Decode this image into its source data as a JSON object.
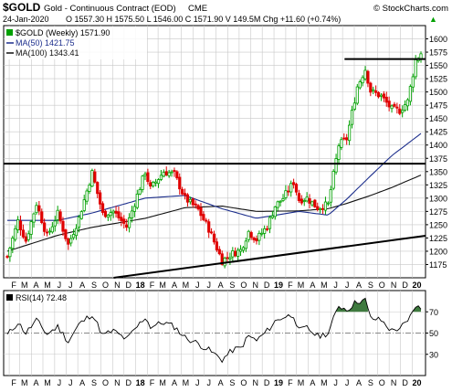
{
  "header": {
    "symbol": "$GOLD",
    "name": "Gold - Continuous Contract (EOD)",
    "exchange": "CME",
    "source": "© StockCharts.com",
    "date": "24-Jan-2020",
    "quote": {
      "O": "1557.30",
      "H": "1575.50",
      "L": "1546.00",
      "C": "1571.90",
      "V": "149.5M",
      "Chg": "+11.60 (+0.74%)"
    },
    "quote_line": "O 1557.30  H 1575.50  L 1546.00  C 1571.90  V 149.5M  Chg +11.60 (+0.74%)",
    "chg_symbol": "▲"
  },
  "legend": {
    "price": "$GOLD (Weekly) 1571.90",
    "ma50": "MA(50) 1421.75",
    "ma100": "MA(100) 1343.41",
    "rsi": "RSI(14) 72.48"
  },
  "colors": {
    "up": "#00a000",
    "down": "#e00000",
    "ma50": "#1c2e8c",
    "ma100": "#111111",
    "rsi_line": "#000000",
    "rsi_fill": "#3f7a3f",
    "grid": "#c8c8c8",
    "frame": "#000000"
  },
  "chart_data": [
    {
      "type": "candlestick",
      "title": "$GOLD (Weekly) 1571.90",
      "timeframe": "weekly",
      "x_range": [
        "2017-01-27",
        "2020-01-24"
      ],
      "ylim": [
        1150,
        1625
      ],
      "y_ticks": [
        1175,
        1200,
        1225,
        1250,
        1275,
        1300,
        1325,
        1350,
        1375,
        1400,
        1425,
        1450,
        1475,
        1500,
        1525,
        1550,
        1575,
        1600
      ],
      "x_tick_labels": [
        "F",
        "M",
        "A",
        "M",
        "J",
        "J",
        "A",
        "S",
        "O",
        "N",
        "D",
        "18",
        "F",
        "M",
        "A",
        "M",
        "J",
        "J",
        "A",
        "S",
        "O",
        "N",
        "D",
        "19",
        "F",
        "M",
        "A",
        "M",
        "J",
        "J",
        "A",
        "S",
        "O",
        "N",
        "D",
        "20"
      ],
      "grid": true,
      "last_close": 1571.9,
      "price_path": [
        [
          "2017-01-27",
          1190
        ],
        [
          "2017-02-24",
          1257
        ],
        [
          "2017-03-17",
          1220
        ],
        [
          "2017-04-14",
          1290
        ],
        [
          "2017-05-12",
          1228
        ],
        [
          "2017-06-09",
          1271
        ],
        [
          "2017-07-07",
          1212
        ],
        [
          "2017-08-04",
          1262
        ],
        [
          "2017-09-08",
          1348
        ],
        [
          "2017-10-06",
          1270
        ],
        [
          "2017-11-03",
          1275
        ],
        [
          "2017-12-08",
          1246
        ],
        [
          "2018-01-26",
          1350
        ],
        [
          "2018-02-09",
          1318
        ],
        [
          "2018-03-16",
          1350
        ],
        [
          "2018-04-13",
          1345
        ],
        [
          "2018-05-11",
          1300
        ],
        [
          "2018-06-15",
          1278
        ],
        [
          "2018-07-13",
          1242
        ],
        [
          "2018-08-17",
          1182
        ],
        [
          "2018-09-14",
          1196
        ],
        [
          "2018-10-05",
          1202
        ],
        [
          "2018-10-26",
          1237
        ],
        [
          "2018-11-16",
          1222
        ],
        [
          "2018-12-14",
          1247
        ],
        [
          "2019-01-04",
          1285
        ],
        [
          "2019-01-25",
          1300
        ],
        [
          "2019-02-22",
          1330
        ],
        [
          "2019-03-08",
          1297
        ],
        [
          "2019-03-29",
          1300
        ],
        [
          "2019-04-26",
          1282
        ],
        [
          "2019-05-24",
          1288
        ],
        [
          "2019-06-21",
          1400
        ],
        [
          "2019-07-12",
          1412
        ],
        [
          "2019-08-09",
          1510
        ],
        [
          "2019-08-30",
          1543
        ],
        [
          "2019-09-13",
          1502
        ],
        [
          "2019-10-11",
          1492
        ],
        [
          "2019-11-08",
          1467
        ],
        [
          "2019-11-29",
          1465
        ],
        [
          "2019-12-20",
          1482
        ],
        [
          "2020-01-10",
          1560
        ],
        [
          "2020-01-24",
          1571.9
        ]
      ],
      "ma50_path": [
        [
          "2017-01-27",
          1258
        ],
        [
          "2017-06-09",
          1258
        ],
        [
          "2017-09-08",
          1272
        ],
        [
          "2018-01-26",
          1300
        ],
        [
          "2018-05-11",
          1305
        ],
        [
          "2018-08-17",
          1280
        ],
        [
          "2018-11-16",
          1262
        ],
        [
          "2019-03-08",
          1275
        ],
        [
          "2019-05-24",
          1268
        ],
        [
          "2019-07-12",
          1298
        ],
        [
          "2019-09-13",
          1342
        ],
        [
          "2019-11-08",
          1380
        ],
        [
          "2020-01-24",
          1421.75
        ]
      ],
      "ma100_path": [
        [
          "2017-01-27",
          1200
        ],
        [
          "2017-06-09",
          1230
        ],
        [
          "2017-09-08",
          1245
        ],
        [
          "2018-01-26",
          1262
        ],
        [
          "2018-05-11",
          1282
        ],
        [
          "2018-08-17",
          1285
        ],
        [
          "2018-11-16",
          1275
        ],
        [
          "2019-03-08",
          1276
        ],
        [
          "2019-05-24",
          1280
        ],
        [
          "2019-07-12",
          1290
        ],
        [
          "2019-09-13",
          1305
        ],
        [
          "2019-11-08",
          1320
        ],
        [
          "2020-01-24",
          1343.41
        ]
      ],
      "annotations": [
        {
          "kind": "horizontal_line",
          "y": 1365
        },
        {
          "kind": "horizontal_line_segment",
          "y": 1562,
          "x_from": "2019-08-09",
          "x_to": "2020-01-24"
        },
        {
          "kind": "trendline",
          "points": [
            [
              "2017-01-27",
              1123
            ],
            [
              "2020-01-24",
              1228
            ]
          ]
        }
      ]
    },
    {
      "type": "line",
      "title": "RSI(14) 72.48",
      "ylim": [
        10,
        90
      ],
      "y_ticks": [
        30,
        50,
        70
      ],
      "last_value": 72.48,
      "overbought": 70,
      "oversold": 30,
      "midline": 50,
      "rsi_path": [
        [
          "2017-01-27",
          48
        ],
        [
          "2017-02-24",
          60
        ],
        [
          "2017-03-17",
          50
        ],
        [
          "2017-04-14",
          62
        ],
        [
          "2017-05-12",
          49
        ],
        [
          "2017-06-09",
          56
        ],
        [
          "2017-07-07",
          42
        ],
        [
          "2017-08-04",
          58
        ],
        [
          "2017-09-08",
          68
        ],
        [
          "2017-10-06",
          48
        ],
        [
          "2017-11-03",
          52
        ],
        [
          "2017-12-08",
          44
        ],
        [
          "2018-01-26",
          65
        ],
        [
          "2018-02-09",
          56
        ],
        [
          "2018-03-16",
          60
        ],
        [
          "2018-04-13",
          56
        ],
        [
          "2018-05-11",
          46
        ],
        [
          "2018-06-15",
          40
        ],
        [
          "2018-07-13",
          34
        ],
        [
          "2018-08-17",
          25
        ],
        [
          "2018-09-14",
          34
        ],
        [
          "2018-10-05",
          36
        ],
        [
          "2018-10-26",
          47
        ],
        [
          "2018-11-16",
          43
        ],
        [
          "2018-12-14",
          52
        ],
        [
          "2019-01-04",
          61
        ],
        [
          "2019-01-25",
          65
        ],
        [
          "2019-02-22",
          67
        ],
        [
          "2019-03-08",
          52
        ],
        [
          "2019-03-29",
          55
        ],
        [
          "2019-04-26",
          47
        ],
        [
          "2019-05-24",
          50
        ],
        [
          "2019-06-21",
          76
        ],
        [
          "2019-07-12",
          72
        ],
        [
          "2019-08-09",
          80
        ],
        [
          "2019-08-30",
          81
        ],
        [
          "2019-09-13",
          64
        ],
        [
          "2019-10-11",
          62
        ],
        [
          "2019-11-08",
          52
        ],
        [
          "2019-11-29",
          55
        ],
        [
          "2019-12-20",
          60
        ],
        [
          "2020-01-10",
          76
        ],
        [
          "2020-01-24",
          72.48
        ]
      ]
    }
  ]
}
